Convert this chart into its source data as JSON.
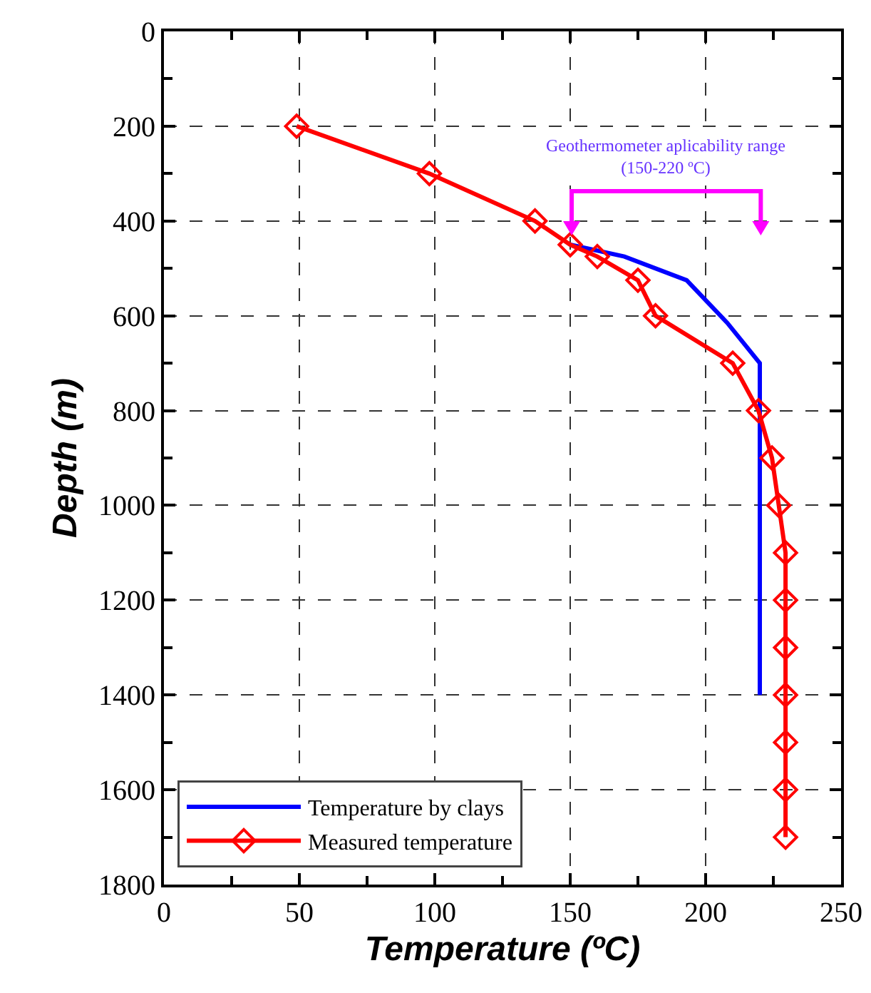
{
  "chart_data": {
    "type": "line",
    "xlabel": "Temperature (ºC)",
    "ylabel": "Depth (m)",
    "xlim": [
      0,
      250
    ],
    "xticks": [
      0,
      50,
      100,
      150,
      200,
      250
    ],
    "ylim": [
      1800,
      0
    ],
    "yticks": [
      0,
      200,
      400,
      600,
      800,
      1000,
      1200,
      1400,
      1600,
      1800
    ],
    "grid": true,
    "legend": "bottom left",
    "series": [
      {
        "name": "Temperature by clays",
        "color": "#0000ff",
        "marker": "none",
        "x": [
          150,
          170,
          193,
          208,
          220,
          220
        ],
        "values": [
          450,
          475,
          525,
          615,
          700,
          1400
        ]
      },
      {
        "name": "Measured temperature",
        "color": "#ff0000",
        "marker": "diamond",
        "x": [
          49,
          98,
          137,
          150,
          160,
          175,
          181.5,
          210,
          219.5,
          224.5,
          227,
          229.5,
          229.5,
          229.5,
          229.5,
          229.5,
          229.5,
          229.5
        ],
        "values": [
          200,
          300,
          400,
          450,
          475,
          525,
          600,
          700,
          800,
          900,
          1000,
          1100,
          1200,
          1300,
          1400,
          1500,
          1600,
          1700
        ]
      }
    ],
    "annotations": [
      "Geothermometer aplicability range\n(150-220 ºC)"
    ]
  }
}
